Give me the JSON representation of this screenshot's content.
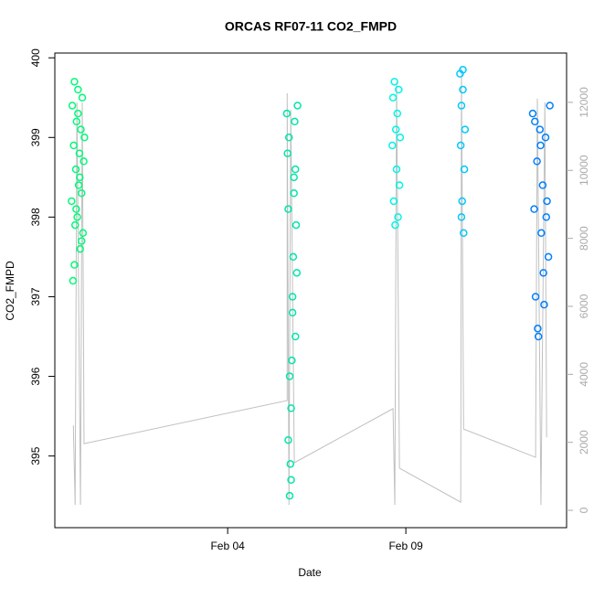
{
  "chart_data": {
    "type": "scatter",
    "title": "ORCAS RF07-11 CO2_FMPD",
    "x_label": "Date",
    "y_label": "CO2_FMPD",
    "xlim": [
      30.15,
      44.51
    ],
    "ylim": [
      394.1,
      400.06
    ],
    "y2lim": [
      -510,
      13450
    ],
    "xticks": [
      {
        "value": 35,
        "label": "Feb 04"
      },
      {
        "value": 40,
        "label": "Feb 09"
      }
    ],
    "yticks": [
      395,
      396,
      397,
      398,
      399,
      400
    ],
    "y2ticks": [
      0,
      2000,
      4000,
      6000,
      8000,
      10000,
      12000
    ],
    "series": [
      {
        "color": "#00fa7a",
        "x": [
          30.62,
          30.64,
          30.66,
          30.68,
          30.7,
          30.72,
          30.74,
          30.76,
          30.78,
          30.8,
          30.82,
          30.84,
          30.86,
          30.88,
          30.9,
          30.92,
          30.94,
          30.96,
          30.98,
          30.7,
          30.75,
          30.8,
          30.85,
          30.9
        ],
        "values": [
          398.2,
          399.4,
          397.2,
          398.9,
          399.7,
          397.9,
          398.6,
          399.2,
          398.0,
          399.6,
          398.4,
          398.8,
          397.6,
          399.1,
          398.3,
          399.5,
          397.8,
          398.7,
          399.0,
          397.4,
          398.1,
          399.3,
          398.5,
          397.7
        ]
      },
      {
        "color": "#00e6a8",
        "x": [
          36.66,
          36.68,
          36.7,
          36.72,
          36.74,
          36.76,
          36.78,
          36.8,
          36.82,
          36.84,
          36.86,
          36.88,
          36.9,
          36.92,
          36.94,
          36.96,
          36.7,
          36.74,
          36.78,
          36.82,
          36.86,
          36.9
        ],
        "values": [
          399.3,
          398.8,
          398.1,
          399.0,
          394.5,
          394.9,
          395.6,
          396.2,
          396.8,
          397.5,
          398.3,
          399.2,
          398.6,
          397.9,
          397.3,
          399.4,
          395.2,
          396.0,
          394.7,
          397.0,
          398.5,
          396.5
        ]
      },
      {
        "color": "#00f5e8",
        "x": [
          39.62,
          39.64,
          39.66,
          39.68,
          39.7,
          39.72,
          39.74,
          39.76,
          39.78,
          39.8,
          39.82,
          39.84
        ],
        "values": [
          398.9,
          399.5,
          398.2,
          399.7,
          397.9,
          399.1,
          398.6,
          399.3,
          398.0,
          399.6,
          398.4,
          399.0
        ]
      },
      {
        "color": "#00c8ff",
        "x": [
          41.52,
          41.54,
          41.56,
          41.58,
          41.6,
          41.62,
          41.64,
          41.66,
          41.56,
          41.6
        ],
        "values": [
          399.8,
          398.9,
          399.4,
          398.2,
          399.6,
          397.8,
          398.6,
          399.1,
          398.0,
          399.85
        ]
      },
      {
        "color": "#0080ff",
        "x": [
          43.56,
          43.6,
          43.64,
          43.68,
          43.72,
          43.76,
          43.8,
          43.84,
          43.88,
          43.92,
          43.96,
          44.0,
          44.04,
          43.7,
          43.78,
          43.86,
          43.94,
          43.62
        ],
        "values": [
          399.3,
          398.1,
          397.0,
          398.7,
          396.5,
          399.1,
          397.8,
          398.4,
          396.9,
          399.0,
          398.2,
          397.5,
          399.4,
          396.6,
          398.9,
          397.3,
          398.0,
          399.2
        ]
      },
      {
        "type": "line",
        "axis": "y2",
        "color": "#c0c0c0",
        "x": [
          30.67,
          30.72,
          30.77,
          30.87,
          30.92,
          30.97,
          36.67,
          36.67,
          36.72,
          36.77,
          36.87,
          39.64,
          39.69,
          39.74,
          39.82,
          41.54,
          41.56,
          41.62,
          43.64,
          43.69,
          43.79,
          43.9,
          43.95
        ],
        "values": [
          2500,
          160,
          12000,
          160,
          12000,
          1960,
          3230,
          12270,
          160,
          11780,
          1400,
          2990,
          160,
          12590,
          1240,
          240,
          13000,
          2390,
          1560,
          12110,
          160,
          12000,
          2150
        ]
      }
    ]
  }
}
